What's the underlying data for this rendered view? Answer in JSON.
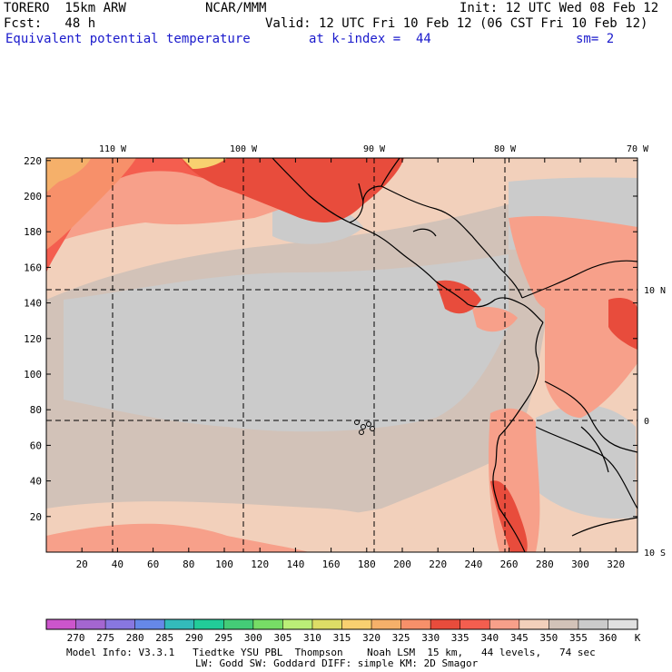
{
  "header": {
    "line1_left": "TORERO  15km ARW",
    "line1_center": "NCAR/MMM",
    "line1_right": "Init: 12 UTC Wed 08 Feb 12",
    "line2_left": "Fcst:   48 h",
    "line2_right": "Valid: 12 UTC Fri 10 Feb 12 (06 CST Fri 10 Feb 12)",
    "line3_field": "Equivalent potential temperature",
    "line3_level": "at k-index =  44",
    "line3_smooth": "sm= 2"
  },
  "map": {
    "top_lon_labels": [
      "110 W",
      "100 W",
      "90 W",
      "80 W",
      "70 W"
    ],
    "right_lat_labels": [
      "10 N",
      "0",
      "10 S"
    ],
    "left_y_ticks": [
      "20",
      "40",
      "60",
      "80",
      "100",
      "120",
      "140",
      "160",
      "180",
      "200",
      "220"
    ],
    "bottom_x_ticks": [
      "20",
      "40",
      "60",
      "80",
      "100",
      "120",
      "140",
      "160",
      "180",
      "200",
      "220",
      "240",
      "260",
      "280",
      "300",
      "320"
    ],
    "colors": {
      "c330": "#e84c3c",
      "c335": "#f45e4f",
      "c340": "#f7a08a",
      "c345": "#f2d0bb",
      "c350": "#d2c2b8",
      "c355": "#cbcbcb",
      "c325": "#f7906a",
      "c320": "#f5b06a",
      "c315": "#f8d070"
    }
  },
  "colorbar": {
    "labels": [
      "270",
      "275",
      "280",
      "285",
      "290",
      "295",
      "300",
      "305",
      "310",
      "315",
      "320",
      "325",
      "330",
      "335",
      "340",
      "345",
      "350",
      "355",
      "360"
    ],
    "unit": "K",
    "colors": [
      "#cc55cc",
      "#a466d0",
      "#8877e0",
      "#6688e8",
      "#33bbbb",
      "#22cc99",
      "#44cc77",
      "#77dd66",
      "#bbee77",
      "#dddd66",
      "#f8d070",
      "#f5b06a",
      "#f7906a",
      "#e84c3c",
      "#f45e4f",
      "#f7a08a",
      "#f2d0bb",
      "#d2c2b8",
      "#cbcbcb",
      "#e0e0e0"
    ]
  },
  "footer": {
    "line1": "Model Info: V3.3.1   Tiedtke YSU PBL  Thompson    Noah LSM  15 km,   44 levels,   74 sec",
    "line2": "LW: Godd SW: Goddard DIFF: simple KM: 2D Smagor"
  }
}
